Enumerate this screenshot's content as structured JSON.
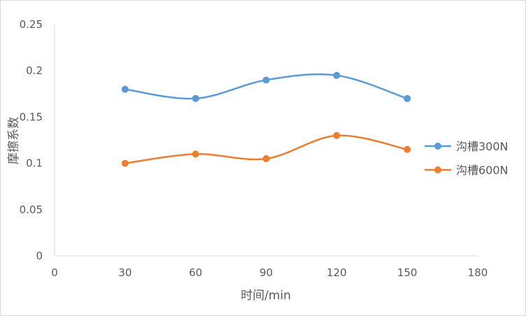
{
  "chart_data": {
    "type": "line",
    "title": "",
    "xlabel": "时间/min",
    "ylabel": "摩擦系数",
    "xlim": [
      0,
      180
    ],
    "ylim": [
      0,
      0.25
    ],
    "xticks": [
      "0",
      "30",
      "60",
      "90",
      "120",
      "150",
      "180"
    ],
    "yticks": [
      "0",
      "0.05",
      "0.1",
      "0.15",
      "0.2",
      "0.25"
    ],
    "x": [
      30,
      60,
      90,
      120,
      150
    ],
    "smooth": true,
    "grid": false,
    "legend_position": "right",
    "series": [
      {
        "name": "沟槽300N",
        "color": "#5b9bd5",
        "values": [
          0.18,
          0.17,
          0.19,
          0.195,
          0.17
        ]
      },
      {
        "name": "沟槽600N",
        "color": "#ed7d31",
        "values": [
          0.1,
          0.11,
          0.105,
          0.13,
          0.115
        ]
      }
    ]
  }
}
